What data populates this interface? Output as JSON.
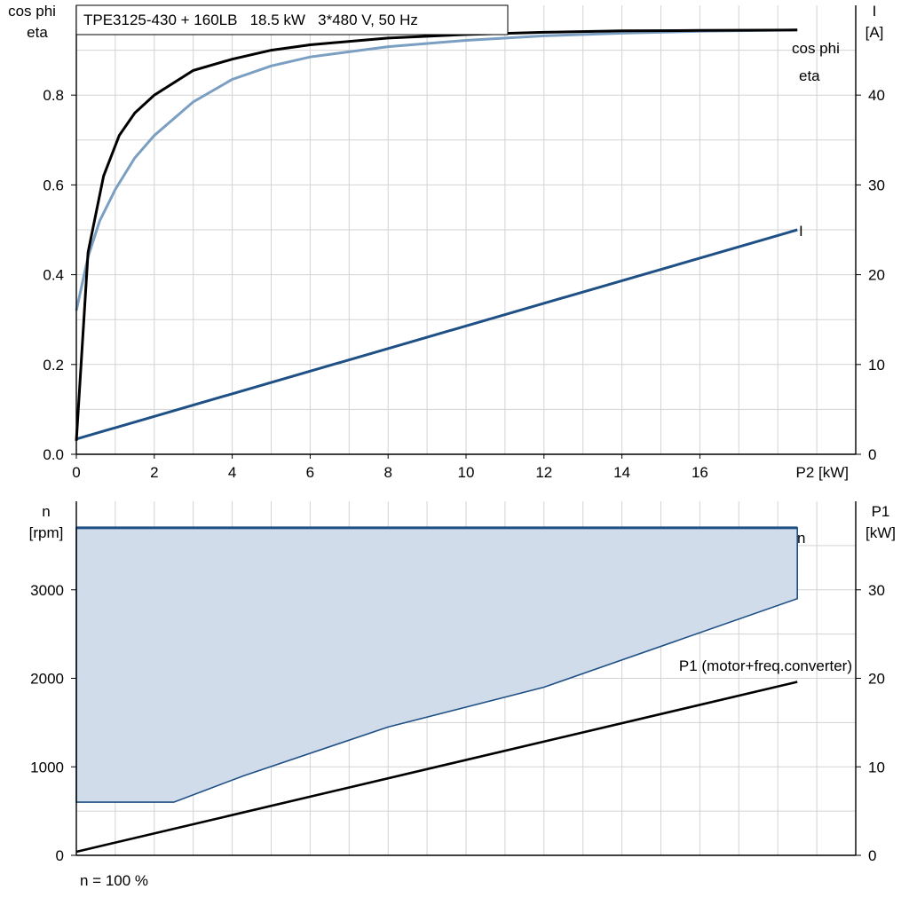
{
  "title": "TPE3125-430 + 160LB   18.5 kW   3*480 V, 50 Hz",
  "footer": "n = 100 %",
  "colors": {
    "eta": "#000000",
    "cos_phi": "#7a9fc2",
    "current": "#1e4f85",
    "speed": "#1e4f85",
    "band_fill": "#d0dcea",
    "p1": "#000000",
    "grid": "#d3d3d3"
  },
  "chart_data": [
    {
      "type": "line",
      "xlabel": "P2 [kW]",
      "ylabel_left": [
        "cos phi",
        "eta"
      ],
      "ylabel_right": [
        "I",
        "[A]"
      ],
      "xlim": [
        0,
        20
      ],
      "ylim_left": [
        0,
        1.0
      ],
      "ylim_right": [
        0,
        50
      ],
      "x_ticks": [
        0,
        2,
        4,
        6,
        8,
        10,
        12,
        14,
        16
      ],
      "y_ticks_left": [
        0.0,
        0.2,
        0.4,
        0.6,
        0.8
      ],
      "y_tick_labels_left": [
        "0.0",
        "0.2",
        "0.4",
        "0.6",
        "0.8"
      ],
      "y_ticks_right": [
        0,
        10,
        20,
        30,
        40
      ],
      "grid": true,
      "series": [
        {
          "name": "eta",
          "axis": "left",
          "x": [
            0,
            0.3,
            0.7,
            1.1,
            1.5,
            2,
            3,
            4,
            5,
            6,
            8,
            10,
            12,
            14,
            16,
            18.5
          ],
          "y": [
            0.03,
            0.45,
            0.62,
            0.71,
            0.76,
            0.8,
            0.855,
            0.88,
            0.9,
            0.912,
            0.927,
            0.935,
            0.94,
            0.943,
            0.944,
            0.945
          ]
        },
        {
          "name": "cos phi",
          "axis": "left",
          "x": [
            0,
            0.3,
            0.6,
            1,
            1.5,
            2,
            3,
            4,
            5,
            6,
            8,
            10,
            12,
            14,
            16,
            18.5
          ],
          "y": [
            0.32,
            0.44,
            0.52,
            0.59,
            0.66,
            0.71,
            0.785,
            0.835,
            0.865,
            0.885,
            0.908,
            0.922,
            0.932,
            0.938,
            0.942,
            0.945
          ]
        },
        {
          "name": "I",
          "axis": "right",
          "x": [
            0,
            18.5
          ],
          "y": [
            1.7,
            25.0
          ]
        }
      ]
    },
    {
      "type": "area",
      "ylabel_left": [
        "n",
        "[rpm]"
      ],
      "ylabel_right": [
        "P1",
        "[kW]"
      ],
      "xlim": [
        0,
        20
      ],
      "ylim_left": [
        0,
        4000
      ],
      "ylim_right": [
        0,
        40
      ],
      "y_ticks_left": [
        0,
        1000,
        2000,
        3000
      ],
      "y_ticks_right": [
        0,
        10,
        20,
        30
      ],
      "grid": true,
      "series": [
        {
          "name": "n",
          "axis": "left",
          "x": [
            0,
            18.5
          ],
          "y": [
            3700,
            3700
          ]
        },
        {
          "name": "",
          "axis": "left",
          "x": [
            0,
            2.5,
            4.3,
            8,
            12,
            18.5
          ],
          "y": [
            600,
            600,
            900,
            1450,
            1900,
            2900
          ]
        },
        {
          "name": "P1 (motor+freq.converter)",
          "axis": "right",
          "x": [
            0,
            18.5
          ],
          "y": [
            0.4,
            19.6
          ]
        }
      ]
    }
  ]
}
